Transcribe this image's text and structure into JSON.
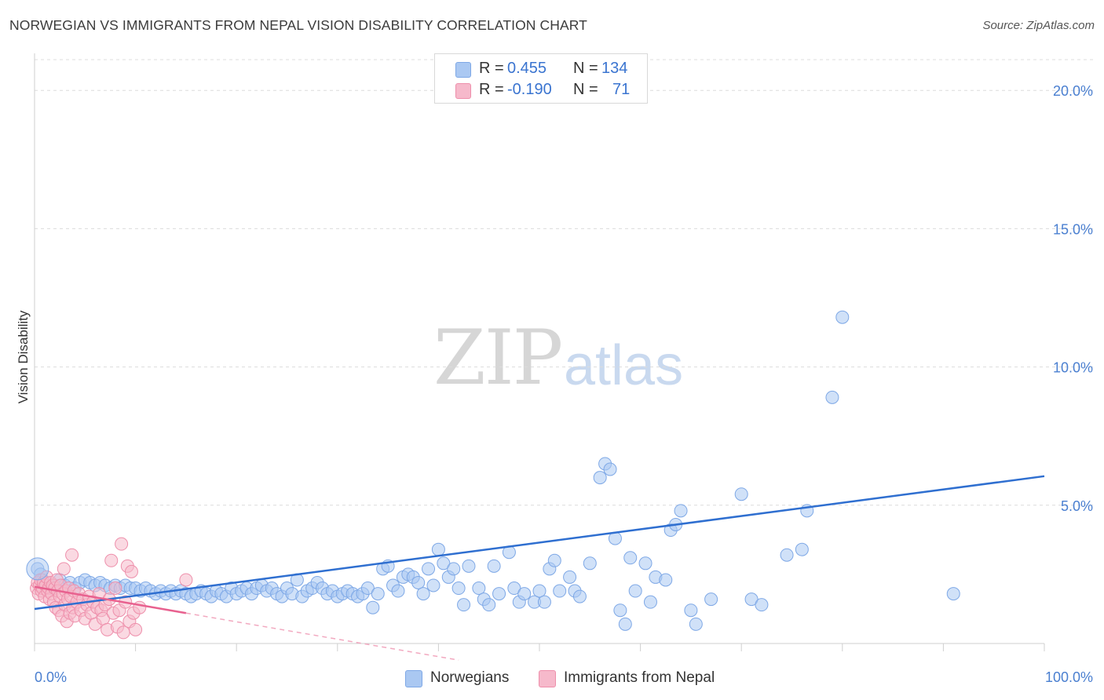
{
  "header": {
    "title": "NORWEGIAN VS IMMIGRANTS FROM NEPAL VISION DISABILITY CORRELATION CHART",
    "source": "Source: ZipAtlas.com"
  },
  "watermark": {
    "zip": "ZIP",
    "atlas": "atlas"
  },
  "legend": {
    "rows": [
      {
        "r_label": "R =",
        "r_value": "0.455",
        "n_label": "N =",
        "n_value": "134",
        "color": "#aac8f2"
      },
      {
        "r_label": "R =",
        "r_value": "-0.190",
        "n_label": "N =",
        "n_value": "71",
        "color": "#f6b9cb"
      }
    ]
  },
  "bottom_legend": {
    "items": [
      {
        "label": "Norwegians",
        "color": "#aac8f2"
      },
      {
        "label": "Immigrants from Nepal",
        "color": "#f6b9cb"
      }
    ]
  },
  "chart_data": {
    "type": "scatter",
    "title": "NORWEGIAN VS IMMIGRANTS FROM NEPAL VISION DISABILITY CORRELATION CHART",
    "xlabel": "",
    "ylabel": "Vision Disability",
    "xlim": [
      0,
      100
    ],
    "ylim": [
      0,
      21
    ],
    "x_tick_labels": [
      "0.0%",
      "100.0%"
    ],
    "y_ticks": [
      5,
      10,
      15,
      20
    ],
    "y_tick_labels": [
      "5.0%",
      "10.0%",
      "15.0%",
      "20.0%"
    ],
    "grid": true,
    "series": [
      {
        "name": "Norwegians",
        "color": "#aac8f2",
        "stroke": "#7ea8e6",
        "trend": {
          "x0": 0,
          "y0": 1.25,
          "x1": 100,
          "y1": 6.05,
          "color": "#2f6fd0"
        },
        "points": [
          [
            0.3,
            2.7
          ],
          [
            0.6,
            2.5
          ],
          [
            0.8,
            2.3
          ],
          [
            1.2,
            2.2
          ],
          [
            1.5,
            2.0
          ],
          [
            2.0,
            2.1
          ],
          [
            2.5,
            2.3
          ],
          [
            3.0,
            2.1
          ],
          [
            3.5,
            2.2
          ],
          [
            4.0,
            2.0
          ],
          [
            4.5,
            2.2
          ],
          [
            5.0,
            2.3
          ],
          [
            5.5,
            2.2
          ],
          [
            6.0,
            2.1
          ],
          [
            6.5,
            2.2
          ],
          [
            7.0,
            2.1
          ],
          [
            7.5,
            2.0
          ],
          [
            8.0,
            2.1
          ],
          [
            8.5,
            2.0
          ],
          [
            9.0,
            2.1
          ],
          [
            9.5,
            2.0
          ],
          [
            10.0,
            2.0
          ],
          [
            10.5,
            1.9
          ],
          [
            11.0,
            2.0
          ],
          [
            11.5,
            1.9
          ],
          [
            12.0,
            1.8
          ],
          [
            12.5,
            1.9
          ],
          [
            13.0,
            1.8
          ],
          [
            13.5,
            1.9
          ],
          [
            14.0,
            1.8
          ],
          [
            14.5,
            1.9
          ],
          [
            15.0,
            1.8
          ],
          [
            15.5,
            1.7
          ],
          [
            16.0,
            1.8
          ],
          [
            16.5,
            1.9
          ],
          [
            17.0,
            1.8
          ],
          [
            17.5,
            1.7
          ],
          [
            18.0,
            1.9
          ],
          [
            18.5,
            1.8
          ],
          [
            19.0,
            1.7
          ],
          [
            19.5,
            2.0
          ],
          [
            20.0,
            1.8
          ],
          [
            20.5,
            1.9
          ],
          [
            21.0,
            2.0
          ],
          [
            21.5,
            1.8
          ],
          [
            22.0,
            2.0
          ],
          [
            22.5,
            2.1
          ],
          [
            23.0,
            1.9
          ],
          [
            23.5,
            2.0
          ],
          [
            24.0,
            1.8
          ],
          [
            24.5,
            1.7
          ],
          [
            25.0,
            2.0
          ],
          [
            25.5,
            1.8
          ],
          [
            26.0,
            2.3
          ],
          [
            26.5,
            1.7
          ],
          [
            27.0,
            1.9
          ],
          [
            27.5,
            2.0
          ],
          [
            28.0,
            2.2
          ],
          [
            28.5,
            2.0
          ],
          [
            29.0,
            1.8
          ],
          [
            29.5,
            1.9
          ],
          [
            30.0,
            1.7
          ],
          [
            30.5,
            1.8
          ],
          [
            31.0,
            1.9
          ],
          [
            31.5,
            1.8
          ],
          [
            32.0,
            1.7
          ],
          [
            32.5,
            1.8
          ],
          [
            33.0,
            2.0
          ],
          [
            33.5,
            1.3
          ],
          [
            34.0,
            1.8
          ],
          [
            34.5,
            2.7
          ],
          [
            35.0,
            2.8
          ],
          [
            35.5,
            2.1
          ],
          [
            36.0,
            1.9
          ],
          [
            36.5,
            2.4
          ],
          [
            37.0,
            2.5
          ],
          [
            37.5,
            2.4
          ],
          [
            38.0,
            2.2
          ],
          [
            38.5,
            1.8
          ],
          [
            39.0,
            2.7
          ],
          [
            39.5,
            2.1
          ],
          [
            40.0,
            3.4
          ],
          [
            40.5,
            2.9
          ],
          [
            41.0,
            2.4
          ],
          [
            41.5,
            2.7
          ],
          [
            42.0,
            2.0
          ],
          [
            42.5,
            1.4
          ],
          [
            43.0,
            2.8
          ],
          [
            44.0,
            2.0
          ],
          [
            44.5,
            1.6
          ],
          [
            45.0,
            1.4
          ],
          [
            45.5,
            2.8
          ],
          [
            46.0,
            1.8
          ],
          [
            47.0,
            3.3
          ],
          [
            47.5,
            2.0
          ],
          [
            48.0,
            1.5
          ],
          [
            48.5,
            1.8
          ],
          [
            49.5,
            1.5
          ],
          [
            50.0,
            1.9
          ],
          [
            50.5,
            1.5
          ],
          [
            51.0,
            2.7
          ],
          [
            51.5,
            3.0
          ],
          [
            52.0,
            1.9
          ],
          [
            53.0,
            2.4
          ],
          [
            53.5,
            1.9
          ],
          [
            54.0,
            1.7
          ],
          [
            55.0,
            2.9
          ],
          [
            56.0,
            6.0
          ],
          [
            56.5,
            6.5
          ],
          [
            57.0,
            6.3
          ],
          [
            57.5,
            3.8
          ],
          [
            58.0,
            1.2
          ],
          [
            58.5,
            0.7
          ],
          [
            59.0,
            3.1
          ],
          [
            59.5,
            1.9
          ],
          [
            60.5,
            2.9
          ],
          [
            61.0,
            1.5
          ],
          [
            61.5,
            2.4
          ],
          [
            62.5,
            2.3
          ],
          [
            63.0,
            4.1
          ],
          [
            63.5,
            4.3
          ],
          [
            64.0,
            4.8
          ],
          [
            65.0,
            1.2
          ],
          [
            65.5,
            0.7
          ],
          [
            67.0,
            1.6
          ],
          [
            70.0,
            5.4
          ],
          [
            71.0,
            1.6
          ],
          [
            72.0,
            1.4
          ],
          [
            74.5,
            3.2
          ],
          [
            76.0,
            3.4
          ],
          [
            76.5,
            4.8
          ],
          [
            79.0,
            8.9
          ],
          [
            80.0,
            11.8
          ],
          [
            91.0,
            1.8
          ]
        ]
      },
      {
        "name": "Immigrants from Nepal",
        "color": "#f6b9cb",
        "stroke": "#ee8fab",
        "trend": {
          "x0": 0,
          "y0": 2.05,
          "x1": 15,
          "y1": 1.1,
          "color": "#e8618f"
        },
        "trend_dashed": {
          "x0": 15,
          "y0": 1.1,
          "x1": 42,
          "y1": -0.6,
          "color": "#f2a9c0"
        },
        "points": [
          [
            0.2,
            2.0
          ],
          [
            0.3,
            2.2
          ],
          [
            0.4,
            1.8
          ],
          [
            0.5,
            2.1
          ],
          [
            0.6,
            2.3
          ],
          [
            0.7,
            1.9
          ],
          [
            0.8,
            2.0
          ],
          [
            0.9,
            2.2
          ],
          [
            1.0,
            1.7
          ],
          [
            1.1,
            2.1
          ],
          [
            1.2,
            2.4
          ],
          [
            1.3,
            1.9
          ],
          [
            1.4,
            2.0
          ],
          [
            1.5,
            1.6
          ],
          [
            1.6,
            2.2
          ],
          [
            1.7,
            1.8
          ],
          [
            1.8,
            2.1
          ],
          [
            1.9,
            1.5
          ],
          [
            2.0,
            2.0
          ],
          [
            2.1,
            1.3
          ],
          [
            2.2,
            2.3
          ],
          [
            2.3,
            1.9
          ],
          [
            2.4,
            1.2
          ],
          [
            2.5,
            1.7
          ],
          [
            2.6,
            2.1
          ],
          [
            2.7,
            1.0
          ],
          [
            2.8,
            1.8
          ],
          [
            2.9,
            2.7
          ],
          [
            3.0,
            1.4
          ],
          [
            3.1,
            1.9
          ],
          [
            3.2,
            0.8
          ],
          [
            3.3,
            1.6
          ],
          [
            3.4,
            2.0
          ],
          [
            3.5,
            1.1
          ],
          [
            3.6,
            1.7
          ],
          [
            3.7,
            3.2
          ],
          [
            3.8,
            1.3
          ],
          [
            3.9,
            1.9
          ],
          [
            4.0,
            1.0
          ],
          [
            4.2,
            1.5
          ],
          [
            4.4,
            1.8
          ],
          [
            4.6,
            1.2
          ],
          [
            4.8,
            1.6
          ],
          [
            5.0,
            0.9
          ],
          [
            5.2,
            1.4
          ],
          [
            5.4,
            1.7
          ],
          [
            5.6,
            1.1
          ],
          [
            5.8,
            1.5
          ],
          [
            6.0,
            0.7
          ],
          [
            6.2,
            1.3
          ],
          [
            6.4,
            1.8
          ],
          [
            6.6,
            1.2
          ],
          [
            6.8,
            0.9
          ],
          [
            7.0,
            1.4
          ],
          [
            7.2,
            0.5
          ],
          [
            7.4,
            1.6
          ],
          [
            7.6,
            3.0
          ],
          [
            7.8,
            1.1
          ],
          [
            8.0,
            2.0
          ],
          [
            8.2,
            0.6
          ],
          [
            8.4,
            1.2
          ],
          [
            8.6,
            3.6
          ],
          [
            8.8,
            0.4
          ],
          [
            9.0,
            1.5
          ],
          [
            9.2,
            2.8
          ],
          [
            9.4,
            0.8
          ],
          [
            9.6,
            2.6
          ],
          [
            9.8,
            1.1
          ],
          [
            10.0,
            0.5
          ],
          [
            10.4,
            1.3
          ],
          [
            15.0,
            2.3
          ]
        ]
      }
    ]
  }
}
